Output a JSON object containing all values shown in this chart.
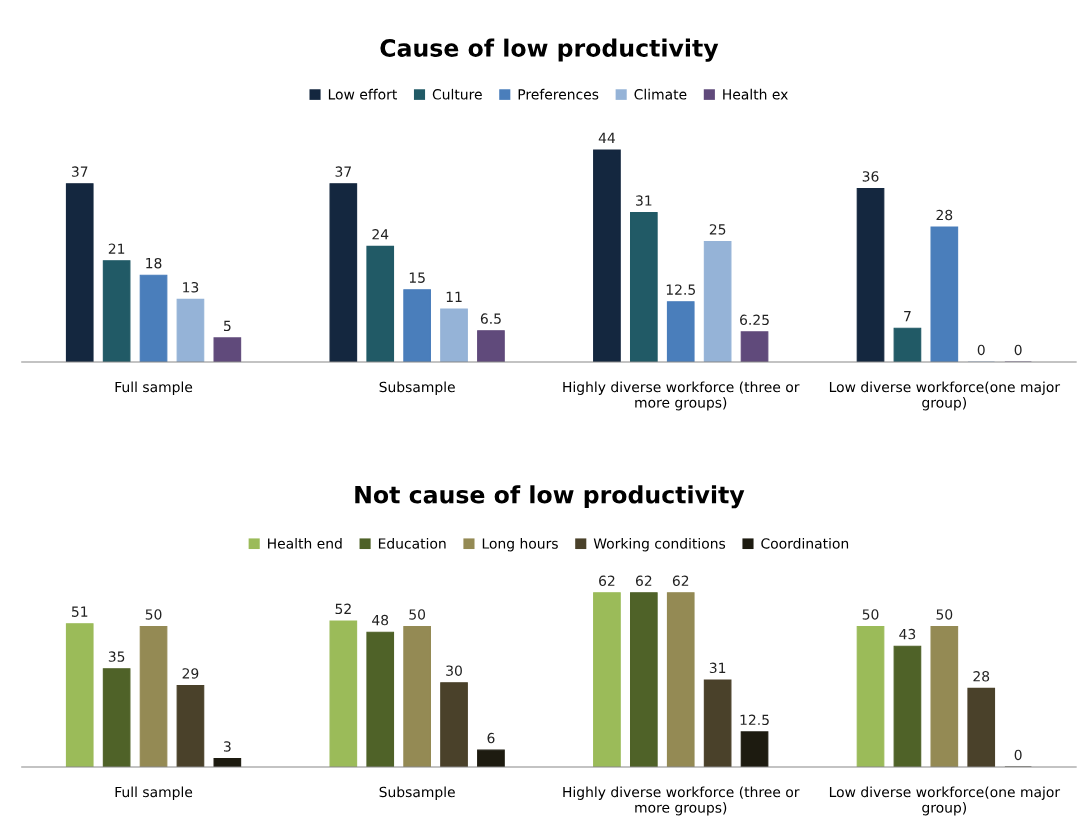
{
  "chart_data": [
    {
      "type": "bar",
      "title": "Cause of low productivity",
      "categories": [
        "Full sample",
        "Subsample",
        "Highly diverse workforce (three or more groups)",
        "Low diverse workforce(one major group)"
      ],
      "legend": "top",
      "data_labels": true,
      "series": [
        {
          "name": "Low effort",
          "color": "#14273f",
          "values": [
            37,
            37,
            44,
            36
          ]
        },
        {
          "name": "Culture",
          "color": "#215a66",
          "values": [
            21,
            24,
            31,
            7
          ]
        },
        {
          "name": "Preferences",
          "color": "#4a7ebb",
          "values": [
            18,
            15,
            12.5,
            28
          ]
        },
        {
          "name": "Climate",
          "color": "#95b3d7",
          "values": [
            13,
            11,
            25,
            0
          ]
        },
        {
          "name": "Health ex",
          "color": "#604a7b",
          "values": [
            5,
            6.5,
            6.25,
            0
          ]
        }
      ]
    },
    {
      "type": "bar",
      "title": "Not cause of low productivity",
      "categories": [
        "Full sample",
        "Subsample",
        "Highly diverse workforce (three or more groups)",
        "Low diverse workforce(one major group)"
      ],
      "legend": "top",
      "data_labels": true,
      "series": [
        {
          "name": "Health end",
          "color": "#9bbb59",
          "values": [
            51,
            52,
            62,
            50
          ]
        },
        {
          "name": "Education",
          "color": "#4f6228",
          "values": [
            35,
            48,
            62,
            43
          ]
        },
        {
          "name": "Long hours",
          "color": "#948a54",
          "values": [
            50,
            50,
            62,
            50
          ]
        },
        {
          "name": "Working conditions",
          "color": "#4a412a",
          "values": [
            29,
            30,
            31,
            28
          ]
        },
        {
          "name": "Coordination",
          "color": "#1d1b10",
          "values": [
            3,
            6,
            12.5,
            0
          ]
        }
      ]
    }
  ]
}
